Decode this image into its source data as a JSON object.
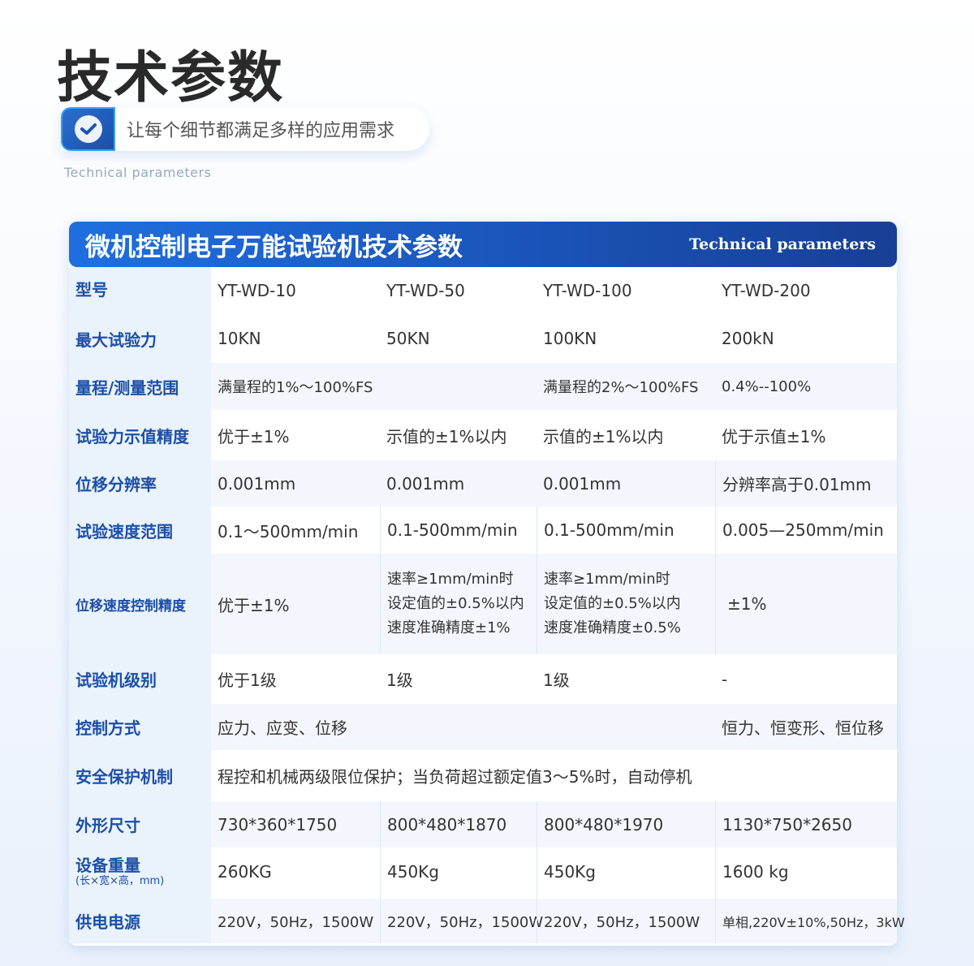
{
  "title": "技术参数",
  "tagline": "让每个细节都满足多样的应用需求",
  "subtitle": "Technical parameters",
  "table": {
    "title": "微机控制电子万能试验机技术参数",
    "title_en": "Technical parameters",
    "rows": [
      {
        "label": "型号",
        "cells": [
          "YT-WD-10",
          "YT-WD-50",
          "YT-WD-100",
          "YT-WD-200"
        ]
      },
      {
        "label": "最大试验力",
        "cells": [
          "10KN",
          "50KN",
          "100KN",
          "200kN"
        ]
      },
      {
        "label": "量程/测量范围",
        "cells": [
          "满量程的1%～100%FS",
          "",
          "满量程的2%～100%FS",
          "0.4%--100%"
        ]
      },
      {
        "label": "试验力示值精度",
        "cells": [
          "优于±1%",
          "示值的±1%以内",
          "示值的±1%以内",
          "优于示值±1%"
        ]
      },
      {
        "label": "位移分辨率",
        "cells": [
          "0.001mm",
          "0.001mm",
          "0.001mm",
          "分辨率高于0.01mm"
        ]
      },
      {
        "label": "试验速度范围",
        "cells": [
          "0.1～500mm/min",
          "0.1-500mm/min",
          "0.1-500mm/min",
          "0.005—250mm/min"
        ]
      },
      {
        "label": "位移速度控制精度",
        "cells": [
          "优于±1%",
          [
            "速率≥1mm/min时",
            "设定值的±0.5%以内",
            "速度准确精度±1%"
          ],
          [
            "速率≥1mm/min时",
            "设定值的±0.5%以内",
            "速度准确精度±0.5%"
          ],
          "±1%"
        ]
      },
      {
        "label": "试验机级别",
        "cells": [
          "优于1级",
          "1级",
          "1级",
          "-"
        ]
      },
      {
        "label": "控制方式",
        "cells": [
          "应力、应变、位移",
          "恒力、恒变形、恒位移"
        ]
      },
      {
        "label": "安全保护机制",
        "cells": [
          "程控和机械两级限位保护；当负荷超过额定值3～5%时，自动停机"
        ]
      },
      {
        "label": "外形尺寸",
        "cells": [
          "730*360*1750",
          "800*480*1870",
          "800*480*1970",
          "1130*750*2650"
        ]
      },
      {
        "label": "设备重量",
        "label_note": "(长×宽×高，mm)",
        "cells": [
          "260KG",
          "450Kg",
          "450Kg",
          "1600 kg"
        ]
      },
      {
        "label": "供电电源",
        "cells": [
          "220V，50Hz，1500W",
          "220V，50Hz，1500W",
          "220V，50Hz，1500W",
          "单相,220V±10%,50Hz，3kW"
        ]
      }
    ]
  },
  "colors": {
    "accent": "#1a52b5",
    "label_text": "#1c4fa8",
    "row_alt": "#f3f7fd"
  }
}
